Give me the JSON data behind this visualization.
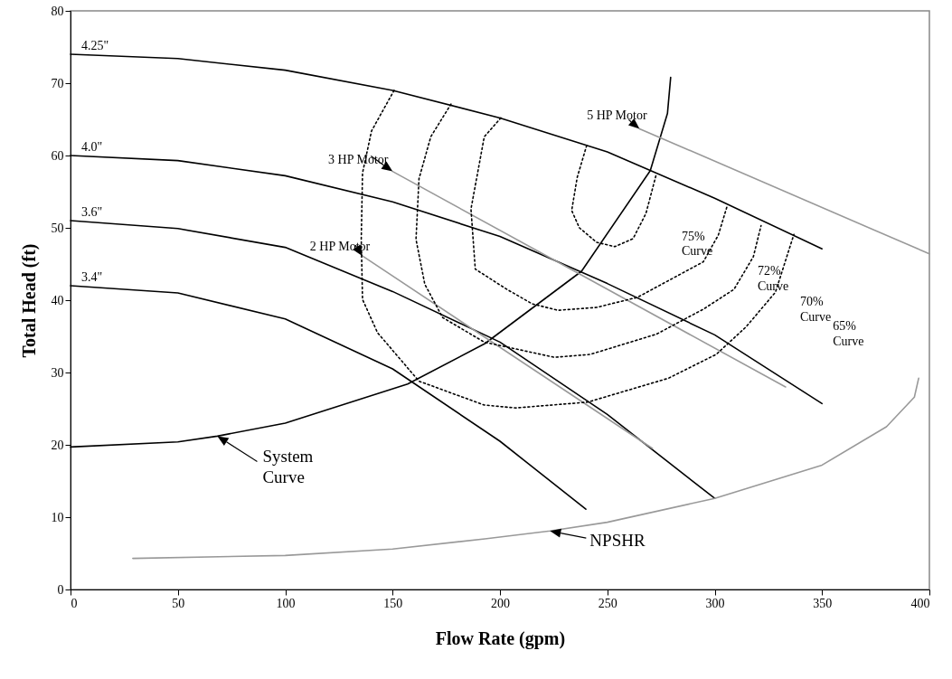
{
  "chart_data": {
    "type": "line",
    "xlabel": "Flow Rate (gpm)",
    "ylabel": "Total Head (ft)",
    "xlim": [
      0,
      400
    ],
    "ylim": [
      0,
      80
    ],
    "xticks": [
      0,
      50,
      100,
      150,
      200,
      250,
      300,
      350,
      400
    ],
    "yticks": [
      0,
      10,
      20,
      30,
      40,
      50,
      60,
      70,
      80
    ],
    "series": [
      {
        "name": "4.25\"",
        "color": "#000000",
        "line_style": "solid",
        "x": [
          0,
          50,
          100,
          150,
          200,
          250,
          300,
          350
        ],
        "values": [
          74,
          73.4,
          71.8,
          69,
          65.2,
          60.5,
          54.1,
          47.1
        ]
      },
      {
        "name": "4.0\"",
        "color": "#000000",
        "line_style": "solid",
        "x": [
          0,
          50,
          100,
          150,
          200,
          250,
          300,
          350
        ],
        "values": [
          60,
          59.3,
          57.2,
          53.6,
          48.8,
          42.3,
          35.2,
          25.7
        ]
      },
      {
        "name": "3.6\"",
        "color": "#000000",
        "line_style": "solid",
        "x": [
          0,
          50,
          100,
          150,
          200,
          250,
          300
        ],
        "values": [
          51,
          49.9,
          47.3,
          41.2,
          34.2,
          24.2,
          12.6
        ]
      },
      {
        "name": "3.4\"",
        "color": "#000000",
        "line_style": "solid",
        "x": [
          0,
          50,
          100,
          150,
          200,
          240
        ],
        "values": [
          42,
          41,
          37.4,
          30.5,
          20.5,
          11.1
        ]
      },
      {
        "color": "#000000",
        "line_style": "solid",
        "x": [
          0,
          50,
          68.4,
          100,
          157,
          193,
          238,
          270,
          278,
          279.5
        ],
        "values": [
          19.7,
          20.4,
          21.2,
          23.0,
          28.4,
          34.0,
          44.0,
          57.9,
          65.8,
          70.8
        ]
      },
      {
        "color": "#999999",
        "line_style": "solid",
        "x": [
          29,
          100,
          150,
          193,
          223.3,
          250,
          300,
          350,
          380,
          393,
          395
        ],
        "values": [
          4.3,
          4.7,
          5.6,
          7.0,
          8.1,
          9.3,
          12.6,
          17.2,
          22.5,
          26.6,
          29.2
        ]
      },
      {
        "color": "#999999",
        "line_style": "solid",
        "x": [
          265,
          400
        ],
        "values": [
          63.7,
          46.4
        ]
      },
      {
        "color": "#999999",
        "line_style": "solid",
        "x": [
          150,
          333
        ],
        "values": [
          57.8,
          28
        ]
      },
      {
        "color": "#999999",
        "line_style": "solid",
        "x": [
          136,
          271
        ],
        "values": [
          46.1,
          19.5
        ]
      },
      {
        "color": "#000000",
        "line_style": "dotted",
        "x": [
          240.4,
          236,
          233.4,
          237,
          245,
          253.5,
          262,
          268,
          272.8
        ],
        "values": [
          61.4,
          57,
          52.4,
          50,
          48,
          47.4,
          48.5,
          52,
          57.4
        ]
      },
      {
        "color": "#000000",
        "line_style": "dotted",
        "x": [
          200.4,
          192.7,
          186.5,
          188.5,
          203.2,
          215,
          226.9,
          245,
          264.1,
          294.7,
          301.7,
          306
        ],
        "values": [
          65.2,
          62.6,
          52.6,
          44.3,
          41.5,
          39.5,
          38.6,
          39,
          40.4,
          45.3,
          49,
          53.2
        ]
      },
      {
        "color": "#000000",
        "line_style": "dotted",
        "x": [
          177.2,
          167.8,
          162.3,
          160.9,
          165,
          173.3,
          192.7,
          225.4,
          242,
          272.9,
          295,
          309,
          318,
          321.6
        ],
        "values": [
          67.1,
          62.6,
          56.8,
          48.4,
          42.2,
          37.6,
          34.2,
          32.1,
          32.5,
          35.3,
          38.8,
          41.5,
          46,
          50.3
        ]
      },
      {
        "color": "#000000",
        "line_style": "dotted",
        "x": [
          150.7,
          140.2,
          136,
          135.4,
          136,
          143,
          162.3,
          192.7,
          207.3,
          240.8,
          278.4,
          300.7,
          314.6,
          328.3,
          336.9
        ],
        "values": [
          69,
          63.4,
          57.6,
          48.4,
          40.1,
          35.5,
          28.8,
          25.5,
          25.1,
          25.9,
          29.2,
          32.5,
          36.3,
          41.1,
          49.1
        ]
      }
    ],
    "annotations": [
      {
        "text": "5 HP Motor",
        "x": 265,
        "y": 63.7
      },
      {
        "text": "3 HP Motor",
        "x": 150,
        "y": 57.8
      },
      {
        "text": "2 HP Motor",
        "x": 136,
        "y": 46.1
      },
      {
        "text": "System\nCurve",
        "x": 68.4,
        "y": 21.2
      },
      {
        "text": "NPSHR",
        "x": 223.3,
        "y": 8.1
      },
      "75%\nCurve",
      "72%\nCurve",
      "70%\nCurve",
      "65%\nCurve"
    ]
  }
}
